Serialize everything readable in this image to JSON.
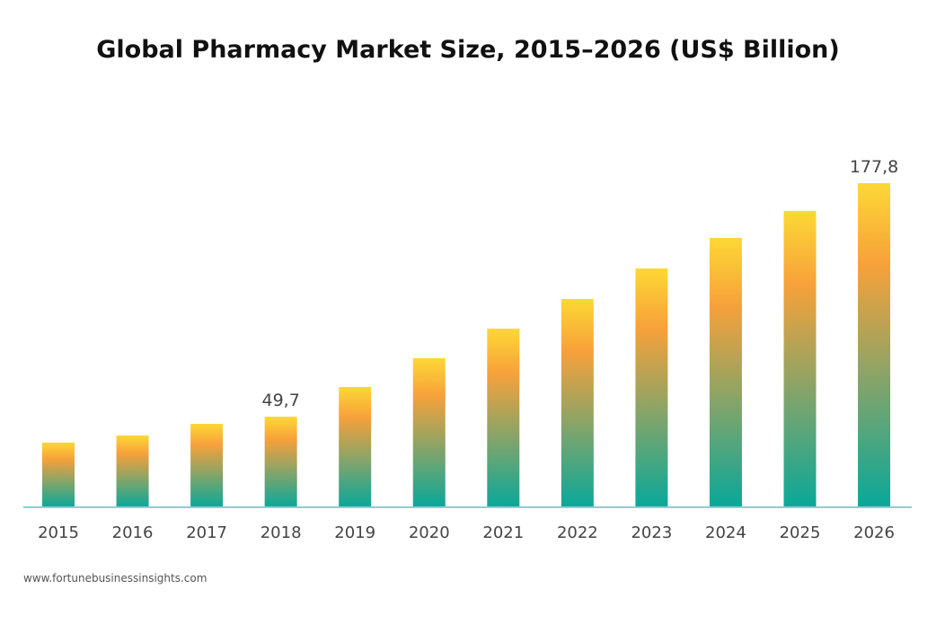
{
  "chart_data": {
    "type": "bar",
    "title": "Global Pharmacy Market Size, 2015–2026 (US$ Billion)",
    "categories": [
      "2015",
      "2016",
      "2017",
      "2018",
      "2019",
      "2020",
      "2021",
      "2022",
      "2023",
      "2024",
      "2025",
      "2026"
    ],
    "values": [
      35.5,
      39.4,
      45.8,
      49.7,
      66.0,
      81.8,
      98.0,
      114.3,
      131.0,
      147.8,
      162.6,
      177.8
    ],
    "data_labels": [
      {
        "category": "2018",
        "text": "49,7"
      },
      {
        "category": "2026",
        "text": "177,8"
      }
    ],
    "xlabel": "",
    "ylabel": "",
    "ylim": [
      0,
      177.8
    ],
    "grid": false,
    "colors": {
      "gradient_top": "#fdd835",
      "gradient_mid": "#f7a13a",
      "gradient_bottom": "#08a89a",
      "axis": "#7fd6cc"
    }
  },
  "source": "www.fortunebusinessinsights.com"
}
